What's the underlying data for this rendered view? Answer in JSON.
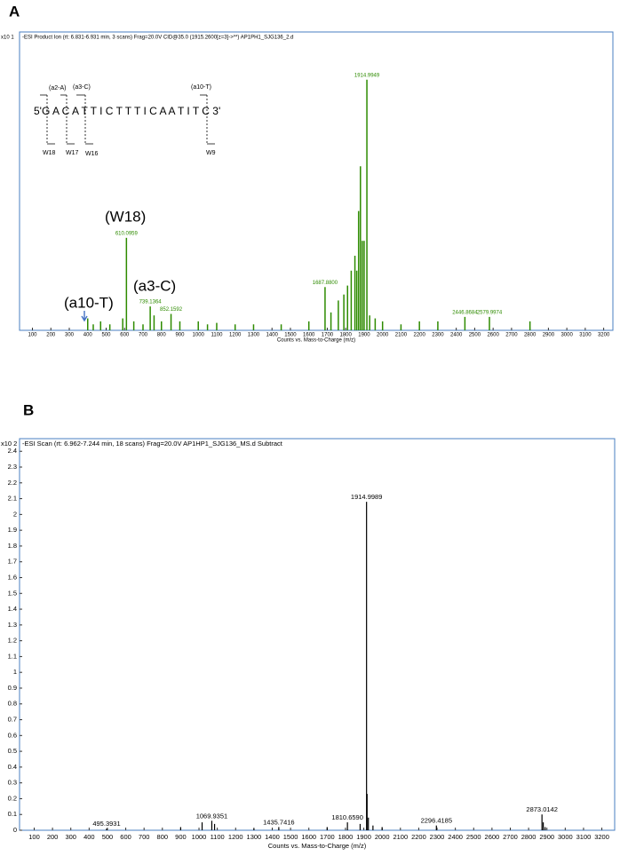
{
  "chart_data": [
    {
      "type": "spectrum",
      "panel_label": "A",
      "title": "-ESI Product Ion (rt: 6.831-6.931 min, 3 scans) Frag=20.0V CID@35.0 (1915.2600[z=3]->**) AP1PH1_SJG136_2.d",
      "y_multiplier": "x10 1",
      "x_label": "Counts vs. Mass-to-Charge (m/z)",
      "color": "#2e8b00",
      "xlim": [
        30,
        3250
      ],
      "xticks": [
        100,
        200,
        300,
        400,
        500,
        600,
        700,
        800,
        900,
        1000,
        1100,
        1200,
        1300,
        1400,
        1500,
        1600,
        1700,
        1800,
        1900,
        2000,
        2100,
        2200,
        2300,
        2400,
        2500,
        2600,
        2700,
        2800,
        2900,
        3000,
        3100,
        3200
      ],
      "ylim": [
        0,
        1
      ],
      "peaks": {
        "x": [
          610.0959,
          739.1364,
          852.1592,
          1687.88,
          1914.9949,
          2446.8684,
          2579.9974
        ],
        "values": [
          0.31,
          0.08,
          0.055,
          0.145,
          0.84,
          0.045,
          0.045
        ],
        "value_labels": [
          "610.0959",
          "739.1364",
          "852.1592",
          "1687.8800",
          "1914.9949",
          "2446.8684",
          "2579.9974"
        ]
      },
      "minor_peaks": {
        "x": [
          400,
          430,
          470,
          520,
          590,
          650,
          700,
          760,
          800,
          900,
          1000,
          1050,
          1100,
          1200,
          1300,
          1450,
          1600,
          1720,
          1760,
          1790,
          1810,
          1830,
          1850,
          1860,
          1870,
          1880,
          1890,
          1900,
          1930,
          1960,
          2000,
          2100,
          2200,
          2300,
          2800
        ],
        "values": [
          0.04,
          0.02,
          0.03,
          0.02,
          0.04,
          0.03,
          0.02,
          0.05,
          0.03,
          0.03,
          0.03,
          0.02,
          0.025,
          0.02,
          0.02,
          0.02,
          0.03,
          0.06,
          0.1,
          0.12,
          0.15,
          0.2,
          0.25,
          0.2,
          0.4,
          0.55,
          0.3,
          0.3,
          0.05,
          0.04,
          0.03,
          0.02,
          0.03,
          0.03,
          0.03
        ]
      },
      "annotations": {
        "sequence": "5'G  A  C  A  T  T  I  C  T  T  T  I  C  A  A  T  I  T  C  3'",
        "a2": "(a2-A)",
        "a3": "(a3-C)",
        "a10": "(a10-T)",
        "w18": "W18",
        "w17": "W17",
        "w16": "W16",
        "w9": "W9",
        "big_w18": "(W18)",
        "big_a3": "(a3-C)",
        "big_a10": "(a10-T)"
      }
    },
    {
      "type": "spectrum",
      "panel_label": "B",
      "title": "-ESI Scan (rt: 6.962-7.244 min, 18 scans) Frag=20.0V AP1HP1_SJG136_MS.d Subtract",
      "y_multiplier": "x10 2",
      "x_label": "Counts vs. Mass-to-Charge (m/z)",
      "color": "#000000",
      "xlim": [
        20,
        3270
      ],
      "xticks": [
        100,
        200,
        300,
        400,
        500,
        600,
        700,
        800,
        900,
        1000,
        1100,
        1200,
        1300,
        1400,
        1500,
        1600,
        1700,
        1800,
        1900,
        2000,
        2100,
        2200,
        2300,
        2400,
        2500,
        2600,
        2700,
        2800,
        2900,
        3000,
        3100,
        3200
      ],
      "ylim": [
        0,
        2.48
      ],
      "yticks": [
        0,
        0.1,
        0.2,
        0.3,
        0.4,
        0.5,
        0.6,
        0.7,
        0.8,
        0.9,
        1,
        1.1,
        1.2,
        1.3,
        1.4,
        1.5,
        1.6,
        1.7,
        1.8,
        1.9,
        2,
        2.1,
        2.2,
        2.3,
        2.4
      ],
      "peaks": {
        "x": [
          495.3931,
          1069.9351,
          1435.7416,
          1810.659,
          1914.9989,
          2296.4185,
          2873.0142
        ],
        "values": [
          0.01,
          0.06,
          0.02,
          0.05,
          2.08,
          0.03,
          0.1
        ],
        "value_labels": [
          "495.3931",
          "1069.9351",
          "1435.7416",
          "1810.6590",
          "1914.9989",
          "2296.4185",
          "2873.0142"
        ]
      },
      "minor_peaks": {
        "x": [
          900,
          1017,
          1085,
          1300,
          1700,
          1880,
          1918,
          1925,
          1950,
          2000,
          2880,
          2890
        ],
        "values": [
          0.02,
          0.05,
          0.04,
          0.01,
          0.02,
          0.04,
          0.23,
          0.08,
          0.03,
          0.02,
          0.05,
          0.02
        ]
      }
    }
  ]
}
